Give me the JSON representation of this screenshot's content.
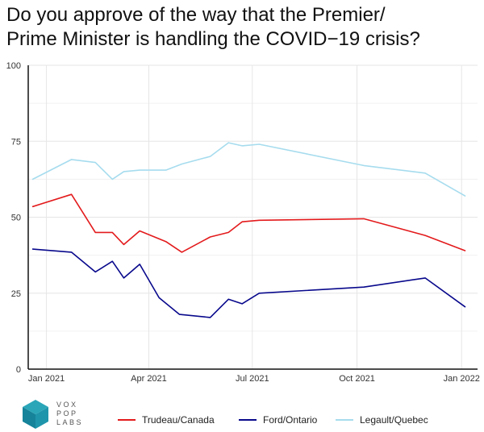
{
  "title_lines": [
    "Do you approve of the way that the Premier/",
    "Prime Minister is handling the COVID−19 crisis?"
  ],
  "logo": {
    "lines": [
      "VOX",
      "POP",
      "LABS"
    ],
    "icon": "cube-logo-icon",
    "color": "#1f8fa3"
  },
  "chart_data": {
    "type": "line",
    "title": "Do you approve of the way that the Premier/Prime Minister is handling the COVID−19 crisis?",
    "xlabel": "",
    "ylabel": "",
    "ylim": [
      0,
      100
    ],
    "yticks": [
      0,
      25,
      50,
      75,
      100
    ],
    "xlim": [
      "2020-12-16",
      "2022-01-15"
    ],
    "xticks": [
      {
        "date": "2021-01-01",
        "label": "Jan 2021"
      },
      {
        "date": "2021-04-01",
        "label": "Apr 2021"
      },
      {
        "date": "2021-07-01",
        "label": "Jul 2021"
      },
      {
        "date": "2021-10-01",
        "label": "Oct 2021"
      },
      {
        "date": "2022-01-01",
        "label": "Jan 2022"
      }
    ],
    "grid": true,
    "legend_position": "bottom",
    "series": [
      {
        "name": "Trudeau/Canada",
        "color": "#e31a1c",
        "x": [
          "2020-12-20",
          "2021-01-23",
          "2021-02-13",
          "2021-02-28",
          "2021-03-10",
          "2021-03-24",
          "2021-04-16",
          "2021-04-30",
          "2021-05-25",
          "2021-06-10",
          "2021-06-22",
          "2021-07-07",
          "2021-10-07",
          "2021-11-30",
          "2022-01-04"
        ],
        "y": [
          53.5,
          57.5,
          45,
          45,
          41,
          45.5,
          42,
          38.5,
          43.5,
          45,
          48.5,
          49,
          49.5,
          44,
          39
        ]
      },
      {
        "name": "Ford/Ontario",
        "color": "#08088c",
        "x": [
          "2020-12-20",
          "2021-01-23",
          "2021-02-13",
          "2021-02-28",
          "2021-03-10",
          "2021-03-24",
          "2021-04-10",
          "2021-04-28",
          "2021-05-25",
          "2021-06-10",
          "2021-06-22",
          "2021-07-07",
          "2021-10-07",
          "2021-11-30",
          "2022-01-04"
        ],
        "y": [
          39.5,
          38.5,
          32,
          35.5,
          30,
          34.5,
          23.5,
          18,
          17,
          23,
          21.5,
          25,
          27,
          30,
          20.5
        ]
      },
      {
        "name": "Legault/Quebec",
        "color": "#a6dcee",
        "x": [
          "2020-12-20",
          "2021-01-23",
          "2021-02-13",
          "2021-02-28",
          "2021-03-10",
          "2021-03-24",
          "2021-04-16",
          "2021-04-30",
          "2021-05-25",
          "2021-06-10",
          "2021-06-22",
          "2021-07-07",
          "2021-10-07",
          "2021-11-30",
          "2022-01-04"
        ],
        "y": [
          62.5,
          69,
          68,
          62.5,
          65,
          65.5,
          65.5,
          67.5,
          70,
          74.5,
          73.5,
          74,
          67,
          64.5,
          57
        ]
      }
    ]
  }
}
